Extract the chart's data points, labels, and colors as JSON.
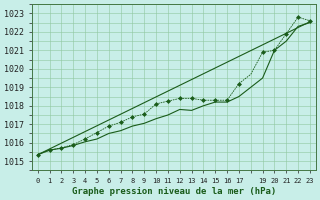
{
  "title": "Graphe pression niveau de la mer (hPa)",
  "bg_color": "#c8eee8",
  "line_color": "#1a5c1a",
  "grid_color": "#90c8a0",
  "xlim": [
    -0.5,
    23.5
  ],
  "ylim": [
    1014.5,
    1023.5
  ],
  "xtick_vals": [
    0,
    1,
    2,
    3,
    4,
    5,
    6,
    7,
    8,
    9,
    10,
    11,
    12,
    13,
    14,
    15,
    16,
    17,
    19,
    20,
    21,
    22,
    23
  ],
  "xtick_labels": [
    "0",
    "1",
    "2",
    "3",
    "4",
    "5",
    "6",
    "7",
    "8",
    "9",
    "10",
    "11",
    "12",
    "13",
    "14",
    "15",
    "16",
    "17",
    "19",
    "20",
    "21",
    "22",
    "23"
  ],
  "yticks": [
    1015,
    1016,
    1017,
    1018,
    1019,
    1020,
    1021,
    1022,
    1023
  ],
  "hours": [
    0,
    1,
    2,
    3,
    4,
    5,
    6,
    7,
    8,
    9,
    10,
    11,
    12,
    13,
    14,
    15,
    16,
    17,
    18,
    19,
    20,
    21,
    22,
    23
  ],
  "pressure1": [
    1015.35,
    1015.6,
    1015.7,
    1015.85,
    1016.05,
    1016.2,
    1016.5,
    1016.65,
    1016.9,
    1017.05,
    1017.3,
    1017.5,
    1017.8,
    1017.75,
    1018.0,
    1018.2,
    1018.2,
    1018.5,
    1019.0,
    1019.5,
    1021.0,
    1021.5,
    1022.3,
    1022.5
  ],
  "pressure2": [
    1015.35,
    1015.6,
    1015.72,
    1015.9,
    1016.2,
    1016.55,
    1016.9,
    1017.1,
    1017.4,
    1017.55,
    1018.1,
    1018.25,
    1018.4,
    1018.4,
    1018.3,
    1018.3,
    1018.3,
    1019.2,
    1019.7,
    1020.9,
    1021.0,
    1021.9,
    1022.8,
    1022.6
  ],
  "trend_x": [
    0,
    23
  ],
  "trend_y": [
    1015.35,
    1022.55
  ],
  "marker_hours": [
    0,
    1,
    2,
    3,
    4,
    5,
    6,
    7,
    8,
    9,
    10,
    11,
    12,
    13,
    14,
    15,
    16,
    17,
    19,
    20,
    21,
    22,
    23
  ],
  "marker_p2": [
    1015.35,
    1015.6,
    1015.72,
    1015.9,
    1016.2,
    1016.55,
    1016.9,
    1017.1,
    1017.4,
    1017.55,
    1018.1,
    1018.25,
    1018.4,
    1018.4,
    1018.3,
    1018.3,
    1018.3,
    1019.2,
    1020.9,
    1021.0,
    1021.9,
    1022.8,
    1022.6
  ]
}
